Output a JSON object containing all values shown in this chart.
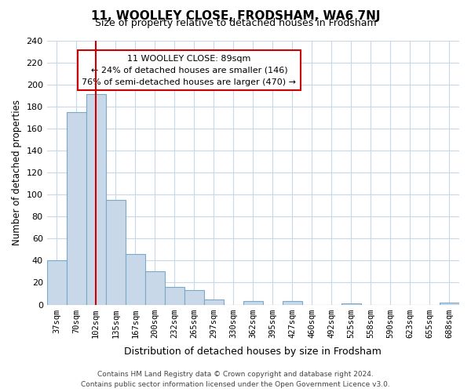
{
  "title": "11, WOOLLEY CLOSE, FRODSHAM, WA6 7NJ",
  "subtitle": "Size of property relative to detached houses in Frodsham",
  "xlabel": "Distribution of detached houses by size in Frodsham",
  "ylabel": "Number of detached properties",
  "bin_labels": [
    "37sqm",
    "70sqm",
    "102sqm",
    "135sqm",
    "167sqm",
    "200sqm",
    "232sqm",
    "265sqm",
    "297sqm",
    "330sqm",
    "362sqm",
    "395sqm",
    "427sqm",
    "460sqm",
    "492sqm",
    "525sqm",
    "558sqm",
    "590sqm",
    "623sqm",
    "655sqm",
    "688sqm"
  ],
  "bar_heights": [
    40,
    175,
    191,
    95,
    46,
    30,
    16,
    13,
    5,
    0,
    3,
    0,
    3,
    0,
    0,
    1,
    0,
    0,
    0,
    0,
    2
  ],
  "bar_color": "#c8d8e8",
  "bar_edge_color": "#7aa8c8",
  "vline_x": 2,
  "vline_color": "#cc0000",
  "ylim": [
    0,
    240
  ],
  "yticks": [
    0,
    20,
    40,
    60,
    80,
    100,
    120,
    140,
    160,
    180,
    200,
    220,
    240
  ],
  "annotation_title": "11 WOOLLEY CLOSE: 89sqm",
  "annotation_line1": "← 24% of detached houses are smaller (146)",
  "annotation_line2": "76% of semi-detached houses are larger (470) →",
  "annotation_box_color": "#ffffff",
  "annotation_box_edge": "#cc0000",
  "footer_line1": "Contains HM Land Registry data © Crown copyright and database right 2024.",
  "footer_line2": "Contains public sector information licensed under the Open Government Licence v3.0.",
  "background_color": "#ffffff",
  "grid_color": "#c8d8e8"
}
